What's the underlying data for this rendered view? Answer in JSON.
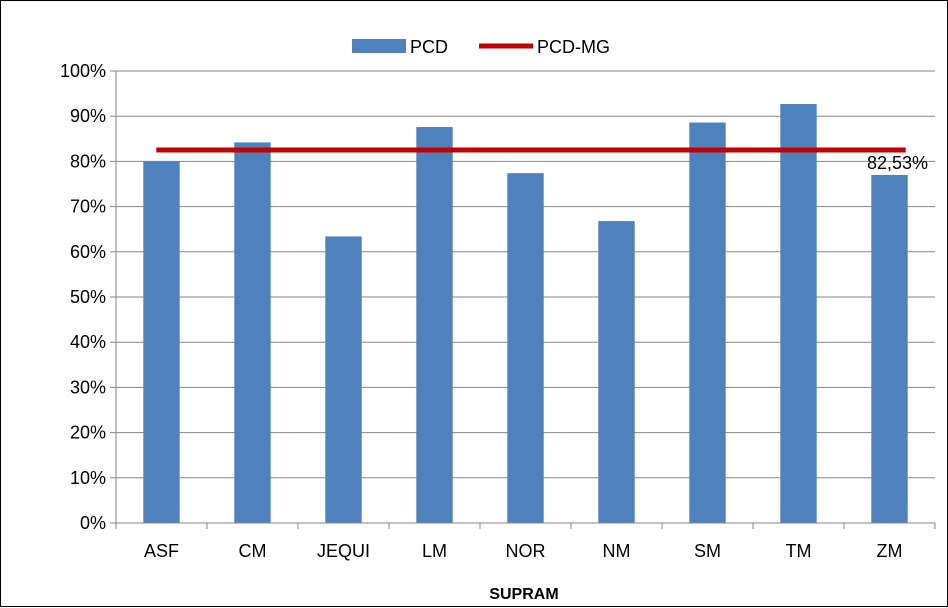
{
  "chart_data": {
    "type": "bar",
    "categories": [
      "ASF",
      "CM",
      "JEQUI",
      "LM",
      "NOR",
      "NM",
      "SM",
      "TM",
      "ZM"
    ],
    "series": [
      {
        "name": "PCD",
        "type": "bar",
        "color": "#4F81BD",
        "values": [
          80.0,
          84.2,
          63.4,
          87.6,
          77.4,
          66.8,
          88.6,
          92.7,
          77.0
        ]
      },
      {
        "name": "PCD-MG",
        "type": "line",
        "color": "#C00000",
        "value": 82.53
      }
    ],
    "annotation": "82,53%",
    "xlabel": "SUPRAM",
    "ylabel": "",
    "ylim": [
      0,
      100
    ],
    "yticks": [
      "0%",
      "10%",
      "20%",
      "30%",
      "40%",
      "50%",
      "60%",
      "70%",
      "80%",
      "90%",
      "100%"
    ],
    "grid": true,
    "legend_position": "top-center"
  }
}
